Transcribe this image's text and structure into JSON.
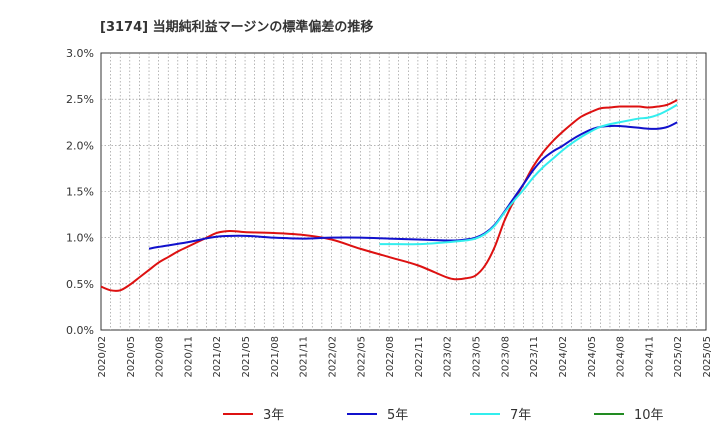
{
  "chart_data": {
    "type": "line",
    "title": "[3174]  当期純利益マージンの標準偏差の推移",
    "xlabel": "",
    "ylabel": "",
    "ylim": [
      0,
      3.0
    ],
    "yticks": [
      "0.0%",
      "0.5%",
      "1.0%",
      "1.5%",
      "2.0%",
      "2.5%",
      "3.0%"
    ],
    "ytick_values": [
      0,
      0.5,
      1.0,
      1.5,
      2.0,
      2.5,
      3.0
    ],
    "xticks": [
      "2020/02",
      "2020/05",
      "2020/08",
      "2020/11",
      "2021/02",
      "2021/05",
      "2021/08",
      "2021/11",
      "2022/02",
      "2022/05",
      "2022/08",
      "2022/11",
      "2023/02",
      "2023/05",
      "2023/08",
      "2023/11",
      "2024/02",
      "2024/05",
      "2024/08",
      "2024/11",
      "2025/02",
      "2025/05"
    ],
    "grid": true,
    "legend_position": "bottom",
    "series": [
      {
        "name": "3年",
        "color": "#dd1111",
        "x": [
          "2020/02",
          "2020/03",
          "2020/04",
          "2020/05",
          "2020/06",
          "2020/07",
          "2020/08",
          "2020/09",
          "2020/10",
          "2020/11",
          "2020/12",
          "2021/01",
          "2021/02",
          "2021/03",
          "2021/04",
          "2021/05",
          "2021/08",
          "2021/11",
          "2022/02",
          "2022/05",
          "2022/08",
          "2022/11",
          "2023/02",
          "2023/03",
          "2023/04",
          "2023/05",
          "2023/06",
          "2023/07",
          "2023/08",
          "2023/09",
          "2023/10",
          "2023/11",
          "2023/12",
          "2024/01",
          "2024/02",
          "2024/03",
          "2024/04",
          "2024/05",
          "2024/06",
          "2024/07",
          "2024/08",
          "2024/09",
          "2024/10",
          "2024/11",
          "2024/12",
          "2025/01",
          "2025/02"
        ],
        "values": [
          0.47,
          0.43,
          0.43,
          0.49,
          0.57,
          0.65,
          0.73,
          0.79,
          0.85,
          0.9,
          0.95,
          1.0,
          1.05,
          1.07,
          1.07,
          1.06,
          1.05,
          1.03,
          0.98,
          0.88,
          0.79,
          0.7,
          0.57,
          0.55,
          0.56,
          0.59,
          0.7,
          0.9,
          1.18,
          1.4,
          1.58,
          1.77,
          1.92,
          2.04,
          2.14,
          2.23,
          2.31,
          2.36,
          2.4,
          2.41,
          2.42,
          2.42,
          2.42,
          2.41,
          2.42,
          2.44,
          2.49
        ]
      },
      {
        "name": "5年",
        "color": "#1111cc",
        "x": [
          "2020/07",
          "2020/08",
          "2020/11",
          "2021/02",
          "2021/05",
          "2021/08",
          "2021/11",
          "2022/02",
          "2022/05",
          "2022/08",
          "2022/11",
          "2023/02",
          "2023/03",
          "2023/04",
          "2023/05",
          "2023/06",
          "2023/07",
          "2023/08",
          "2023/09",
          "2023/10",
          "2023/11",
          "2023/12",
          "2024/01",
          "2024/02",
          "2024/03",
          "2024/04",
          "2024/05",
          "2024/06",
          "2024/07",
          "2024/08",
          "2024/09",
          "2024/10",
          "2024/11",
          "2024/12",
          "2025/01",
          "2025/02"
        ],
        "values": [
          0.88,
          0.9,
          0.95,
          1.01,
          1.02,
          1.0,
          0.99,
          1.0,
          1.0,
          0.99,
          0.98,
          0.97,
          0.97,
          0.98,
          1.0,
          1.05,
          1.14,
          1.28,
          1.43,
          1.58,
          1.73,
          1.85,
          1.93,
          1.99,
          2.06,
          2.12,
          2.17,
          2.2,
          2.21,
          2.21,
          2.2,
          2.19,
          2.18,
          2.18,
          2.2,
          2.25
        ]
      },
      {
        "name": "7年",
        "color": "#33eeee",
        "x": [
          "2022/07",
          "2022/08",
          "2022/11",
          "2023/02",
          "2023/03",
          "2023/04",
          "2023/05",
          "2023/06",
          "2023/07",
          "2023/08",
          "2023/09",
          "2023/10",
          "2023/11",
          "2023/12",
          "2024/01",
          "2024/02",
          "2024/03",
          "2024/04",
          "2024/05",
          "2024/06",
          "2024/07",
          "2024/08",
          "2024/09",
          "2024/10",
          "2024/11",
          "2024/12",
          "2025/01",
          "2025/02"
        ],
        "values": [
          0.93,
          0.93,
          0.93,
          0.95,
          0.96,
          0.97,
          0.99,
          1.04,
          1.13,
          1.27,
          1.4,
          1.52,
          1.65,
          1.76,
          1.85,
          1.94,
          2.02,
          2.09,
          2.15,
          2.2,
          2.23,
          2.25,
          2.27,
          2.29,
          2.3,
          2.33,
          2.38,
          2.44
        ]
      },
      {
        "name": "10年",
        "color": "#228b22",
        "x": [],
        "values": []
      }
    ]
  }
}
